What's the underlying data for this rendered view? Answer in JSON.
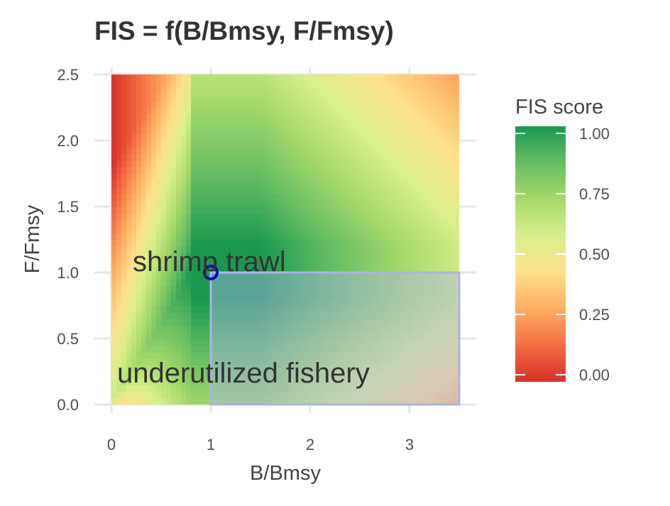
{
  "chart_data": {
    "type": "heatmap",
    "title": "FIS = f(B/Bmsy, F/Fmsy)",
    "xlabel": "B/Bmsy",
    "ylabel": "F/Fmsy",
    "xlim": [
      0,
      3.5
    ],
    "ylim": [
      0,
      2.5
    ],
    "x_ticks": [
      "0",
      "1",
      "2",
      "3"
    ],
    "y_ticks": [
      "0.0",
      "0.5",
      "1.0",
      "1.5",
      "2.0",
      "2.5"
    ],
    "grid": true,
    "legend": {
      "title": "FIS score",
      "placement": "right",
      "breaks": [
        "1.00",
        "0.75",
        "0.50",
        "0.25",
        "0.00"
      ],
      "colors": [
        "#d73027",
        "#f46d43",
        "#fdae61",
        "#fee08b",
        "#d9ef8b",
        "#a6d96a",
        "#66bd63",
        "#1a9850"
      ]
    },
    "points": [
      {
        "x": 1.0,
        "y": 1.0,
        "label": "shrimp trawl",
        "color": "#0000cc"
      }
    ],
    "regions": [
      {
        "x": [
          1.0,
          3.5
        ],
        "y": [
          0.0,
          1.0
        ],
        "label": "underutilized fishery",
        "fill": "#aab3e8"
      }
    ]
  }
}
